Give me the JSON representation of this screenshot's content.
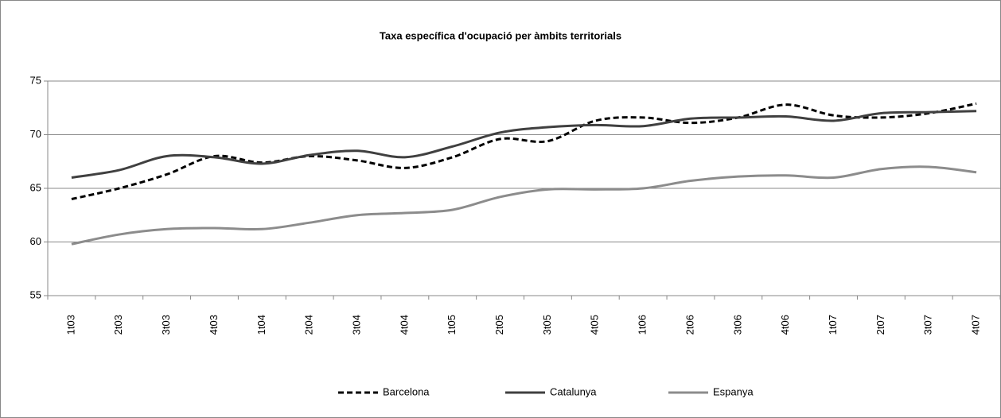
{
  "chart_data": {
    "type": "line",
    "title": "Taxa específica d'ocupació per àmbits territorials",
    "categories": [
      "1t03",
      "2t03",
      "3t03",
      "4t03",
      "1t04",
      "2t04",
      "3t04",
      "4t04",
      "1t05",
      "2t05",
      "3t05",
      "4t05",
      "1t06",
      "2t06",
      "3t06",
      "4t06",
      "1t07",
      "2t07",
      "3t07",
      "4t07"
    ],
    "series": [
      {
        "name": "Barcelona",
        "color": "#000000",
        "line_style": "dashed",
        "values": [
          64.0,
          65.0,
          66.3,
          68.0,
          67.4,
          68.0,
          67.6,
          66.9,
          67.9,
          69.6,
          69.4,
          71.3,
          71.6,
          71.1,
          71.6,
          72.8,
          71.8,
          71.6,
          72.0,
          72.9
        ]
      },
      {
        "name": "Catalunya",
        "color": "#404040",
        "line_style": "solid",
        "values": [
          66.0,
          66.7,
          68.0,
          67.9,
          67.3,
          68.1,
          68.5,
          67.9,
          68.9,
          70.2,
          70.7,
          70.9,
          70.8,
          71.5,
          71.6,
          71.7,
          71.3,
          72.0,
          72.1,
          72.2
        ]
      },
      {
        "name": "Espanya",
        "color": "#8c8c8c",
        "line_style": "solid",
        "values": [
          59.8,
          60.7,
          61.2,
          61.3,
          61.2,
          61.8,
          62.5,
          62.7,
          63.0,
          64.2,
          64.9,
          64.9,
          65.0,
          65.7,
          66.1,
          66.2,
          66.0,
          66.8,
          67.0,
          66.5
        ]
      }
    ],
    "ylim": [
      55,
      75
    ],
    "yticks": [
      55,
      60,
      65,
      70,
      75
    ],
    "grid": true,
    "legend": "bottom"
  }
}
